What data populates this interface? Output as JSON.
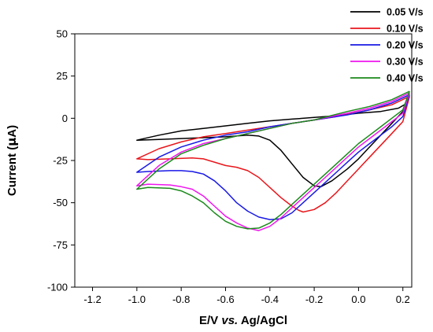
{
  "chart_data": {
    "type": "line",
    "title": "",
    "xlabel_parts": [
      "E/V ",
      "vs.",
      " Ag/AgCl"
    ],
    "ylabel_parts": [
      "Current (",
      "μ",
      "A)"
    ],
    "xlim": [
      -1.28,
      0.24
    ],
    "ylim": [
      -100,
      50
    ],
    "xticks": [
      -1.2,
      -1.0,
      -0.8,
      -0.6,
      -0.4,
      -0.2,
      0.0,
      0.2
    ],
    "xtick_labels": [
      "-1.2",
      "-1.0",
      "-0.8",
      "-0.6",
      "-0.4",
      "-0.2",
      "0.0",
      "0.2"
    ],
    "yticks": [
      -100,
      -75,
      -50,
      -25,
      0,
      25,
      50
    ],
    "ytick_labels": [
      "-100",
      "-75",
      "-50",
      "-25",
      "0",
      "25",
      "50"
    ],
    "grid": false,
    "legend_position": "top-right",
    "series": [
      {
        "name": "0.05 V/s",
        "color": "#000000",
        "points": [
          [
            0.22,
            9
          ],
          [
            0.18,
            6
          ],
          [
            0.1,
            4
          ],
          [
            0.0,
            3
          ],
          [
            -0.1,
            1.5
          ],
          [
            -0.2,
            0.5
          ],
          [
            -0.3,
            -0.5
          ],
          [
            -0.4,
            -1.5
          ],
          [
            -0.5,
            -3
          ],
          [
            -0.6,
            -4.5
          ],
          [
            -0.7,
            -6
          ],
          [
            -0.8,
            -7.5
          ],
          [
            -0.9,
            -10
          ],
          [
            -1.0,
            -13
          ],
          [
            -0.9,
            -12.5
          ],
          [
            -0.8,
            -12
          ],
          [
            -0.7,
            -11.5
          ],
          [
            -0.6,
            -11
          ],
          [
            -0.5,
            -10
          ],
          [
            -0.45,
            -10.5
          ],
          [
            -0.4,
            -13
          ],
          [
            -0.35,
            -19
          ],
          [
            -0.3,
            -27
          ],
          [
            -0.25,
            -35
          ],
          [
            -0.2,
            -40
          ],
          [
            -0.17,
            -40.5
          ],
          [
            -0.12,
            -37
          ],
          [
            -0.05,
            -30
          ],
          [
            0.0,
            -24
          ],
          [
            0.05,
            -17
          ],
          [
            0.1,
            -10
          ],
          [
            0.15,
            -3
          ],
          [
            0.2,
            4
          ],
          [
            0.22,
            9
          ]
        ]
      },
      {
        "name": "0.10 V/s",
        "color": "#e8161b",
        "points": [
          [
            0.23,
            13
          ],
          [
            0.15,
            8
          ],
          [
            0.05,
            5
          ],
          [
            -0.1,
            1
          ],
          [
            -0.2,
            -1
          ],
          [
            -0.3,
            -3
          ],
          [
            -0.4,
            -5
          ],
          [
            -0.5,
            -7
          ],
          [
            -0.6,
            -9
          ],
          [
            -0.7,
            -11
          ],
          [
            -0.8,
            -14
          ],
          [
            -0.9,
            -18
          ],
          [
            -1.0,
            -24
          ],
          [
            -0.95,
            -24.5
          ],
          [
            -0.85,
            -24
          ],
          [
            -0.75,
            -23.5
          ],
          [
            -0.7,
            -24
          ],
          [
            -0.65,
            -26
          ],
          [
            -0.6,
            -28
          ],
          [
            -0.55,
            -29
          ],
          [
            -0.5,
            -31
          ],
          [
            -0.45,
            -35
          ],
          [
            -0.4,
            -41
          ],
          [
            -0.35,
            -47
          ],
          [
            -0.3,
            -52
          ],
          [
            -0.27,
            -54.5
          ],
          [
            -0.25,
            -55.5
          ],
          [
            -0.2,
            -54
          ],
          [
            -0.15,
            -50
          ],
          [
            -0.1,
            -44
          ],
          [
            -0.05,
            -37
          ],
          [
            0.0,
            -30
          ],
          [
            0.05,
            -23
          ],
          [
            0.1,
            -16
          ],
          [
            0.15,
            -9
          ],
          [
            0.2,
            -2
          ],
          [
            0.23,
            13
          ]
        ]
      },
      {
        "name": "0.20 V/s",
        "color": "#1919e6",
        "points": [
          [
            0.23,
            14
          ],
          [
            0.15,
            9
          ],
          [
            0.05,
            5
          ],
          [
            -0.05,
            2
          ],
          [
            -0.2,
            -1
          ],
          [
            -0.3,
            -3
          ],
          [
            -0.4,
            -5
          ],
          [
            -0.5,
            -8
          ],
          [
            -0.6,
            -10
          ],
          [
            -0.7,
            -13
          ],
          [
            -0.8,
            -17
          ],
          [
            -0.9,
            -23
          ],
          [
            -1.0,
            -32
          ],
          [
            -0.95,
            -31.5
          ],
          [
            -0.85,
            -31
          ],
          [
            -0.8,
            -31
          ],
          [
            -0.75,
            -31.5
          ],
          [
            -0.7,
            -33
          ],
          [
            -0.65,
            -37
          ],
          [
            -0.6,
            -43
          ],
          [
            -0.55,
            -50
          ],
          [
            -0.5,
            -55
          ],
          [
            -0.45,
            -58.5
          ],
          [
            -0.4,
            -60
          ],
          [
            -0.35,
            -59.5
          ],
          [
            -0.3,
            -56
          ],
          [
            -0.25,
            -50
          ],
          [
            -0.2,
            -44
          ],
          [
            -0.15,
            -38
          ],
          [
            -0.1,
            -32
          ],
          [
            -0.05,
            -26
          ],
          [
            0.0,
            -20
          ],
          [
            0.05,
            -15
          ],
          [
            0.1,
            -10
          ],
          [
            0.15,
            -5
          ],
          [
            0.2,
            1
          ],
          [
            0.23,
            14
          ]
        ]
      },
      {
        "name": "0.30 V/s",
        "color": "#ee16ee",
        "points": [
          [
            0.23,
            15
          ],
          [
            0.15,
            10
          ],
          [
            0.05,
            6
          ],
          [
            -0.05,
            3
          ],
          [
            -0.2,
            -1
          ],
          [
            -0.3,
            -3
          ],
          [
            -0.4,
            -6
          ],
          [
            -0.5,
            -9
          ],
          [
            -0.6,
            -12
          ],
          [
            -0.7,
            -15
          ],
          [
            -0.8,
            -20
          ],
          [
            -0.9,
            -28
          ],
          [
            -1.0,
            -40
          ],
          [
            -0.95,
            -39
          ],
          [
            -0.85,
            -39.5
          ],
          [
            -0.8,
            -40.5
          ],
          [
            -0.75,
            -42
          ],
          [
            -0.7,
            -46
          ],
          [
            -0.65,
            -52
          ],
          [
            -0.6,
            -58
          ],
          [
            -0.55,
            -62
          ],
          [
            -0.5,
            -65
          ],
          [
            -0.45,
            -66.5
          ],
          [
            -0.4,
            -64
          ],
          [
            -0.35,
            -59
          ],
          [
            -0.3,
            -53
          ],
          [
            -0.25,
            -47
          ],
          [
            -0.2,
            -41
          ],
          [
            -0.15,
            -35
          ],
          [
            -0.1,
            -29
          ],
          [
            -0.05,
            -23
          ],
          [
            0.0,
            -17
          ],
          [
            0.05,
            -12
          ],
          [
            0.1,
            -7
          ],
          [
            0.15,
            -2
          ],
          [
            0.2,
            3
          ],
          [
            0.23,
            15
          ]
        ]
      },
      {
        "name": "0.40 V/s",
        "color": "#1b8a1b",
        "points": [
          [
            0.23,
            16
          ],
          [
            0.15,
            11
          ],
          [
            0.05,
            7
          ],
          [
            -0.05,
            4
          ],
          [
            -0.2,
            -1
          ],
          [
            -0.3,
            -3
          ],
          [
            -0.4,
            -6
          ],
          [
            -0.5,
            -9
          ],
          [
            -0.6,
            -12
          ],
          [
            -0.7,
            -16
          ],
          [
            -0.8,
            -21
          ],
          [
            -0.9,
            -30
          ],
          [
            -1.0,
            -42
          ],
          [
            -0.95,
            -41
          ],
          [
            -0.85,
            -41.5
          ],
          [
            -0.8,
            -43
          ],
          [
            -0.75,
            -46
          ],
          [
            -0.7,
            -50
          ],
          [
            -0.65,
            -56
          ],
          [
            -0.6,
            -61
          ],
          [
            -0.55,
            -64
          ],
          [
            -0.5,
            -65.5
          ],
          [
            -0.45,
            -65
          ],
          [
            -0.4,
            -62
          ],
          [
            -0.35,
            -57
          ],
          [
            -0.3,
            -51
          ],
          [
            -0.25,
            -45
          ],
          [
            -0.2,
            -39
          ],
          [
            -0.15,
            -33
          ],
          [
            -0.1,
            -27
          ],
          [
            -0.05,
            -21
          ],
          [
            0.0,
            -15
          ],
          [
            0.05,
            -10
          ],
          [
            0.1,
            -5
          ],
          [
            0.15,
            0
          ],
          [
            0.2,
            5
          ],
          [
            0.23,
            16
          ]
        ]
      }
    ]
  }
}
